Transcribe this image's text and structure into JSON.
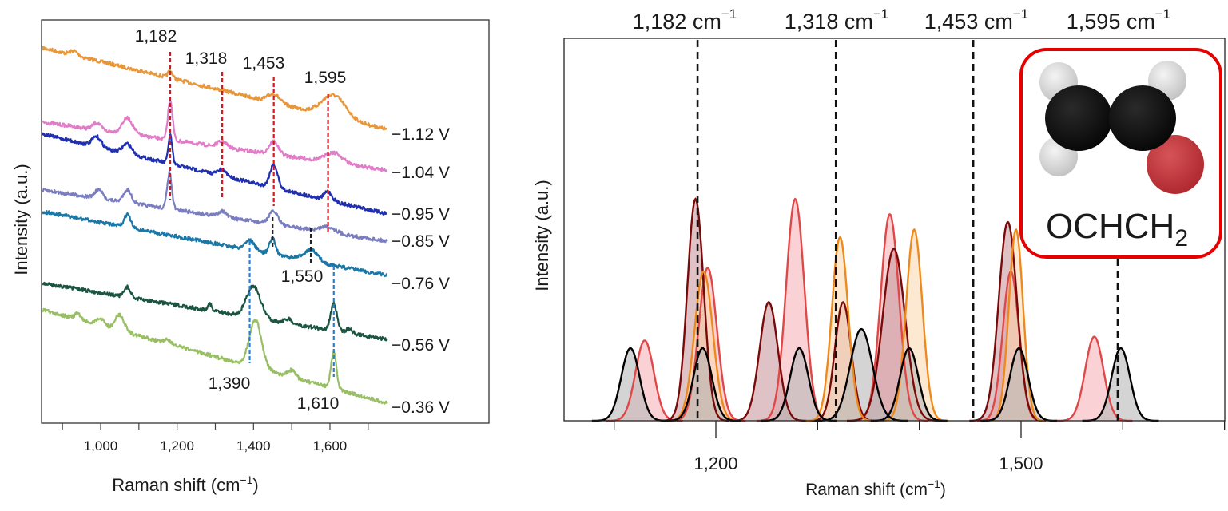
{
  "chart_data": [
    {
      "id": "left",
      "type": "line",
      "title": "",
      "xlabel": "Raman shift (cm⁻¹)",
      "ylabel": "Intensity (a.u.)",
      "xlim": [
        845,
        1760
      ],
      "x_ticks": [
        900,
        1000,
        1100,
        1200,
        1300,
        1400,
        1500,
        1600,
        1700
      ],
      "x_tick_labels": [
        {
          "value": 1000,
          "label": "1,000"
        },
        {
          "value": 1200,
          "label": "1,200"
        },
        {
          "value": 1400,
          "label": "1,400"
        },
        {
          "value": 1600,
          "label": "1,600"
        }
      ],
      "grid": false,
      "series": [
        {
          "name": "−1.12 V",
          "color": "#e8963a",
          "offset": 0.0,
          "slope": 1.0,
          "peaks": [
            [
              1182,
              0.25,
              6
            ],
            [
              1453,
              0.3,
              15
            ],
            [
              1610,
              0.75,
              30
            ],
            [
              930,
              0.15,
              10
            ]
          ]
        },
        {
          "name": "−1.04 V",
          "color": "#e07cc8",
          "offset": 1.0,
          "slope": 0.6,
          "peaks": [
            [
              1182,
              1.4,
              6
            ],
            [
              1070,
              0.55,
              14
            ],
            [
              990,
              0.25,
              10
            ],
            [
              1453,
              0.45,
              12
            ],
            [
              1610,
              0.35,
              22
            ],
            [
              1318,
              0.2,
              12
            ]
          ]
        },
        {
          "name": "−0.95 V",
          "color": "#1f2fb0",
          "offset": 1.15,
          "slope": 1.0,
          "peaks": [
            [
              1182,
              1.0,
              5
            ],
            [
              1070,
              0.35,
              12
            ],
            [
              990,
              0.35,
              12
            ],
            [
              1453,
              0.8,
              10
            ],
            [
              1595,
              0.3,
              10
            ],
            [
              1318,
              0.2,
              12
            ]
          ]
        },
        {
          "name": "−0.85 V",
          "color": "#7a7ec0",
          "offset": 1.85,
          "slope": 0.64,
          "peaks": [
            [
              1180,
              1.25,
              6
            ],
            [
              1070,
              0.45,
              10
            ],
            [
              995,
              0.3,
              10
            ],
            [
              1453,
              0.45,
              12
            ],
            [
              1318,
              0.2,
              10
            ],
            [
              1595,
              0.2,
              20
            ]
          ]
        },
        {
          "name": "−0.76 V",
          "color": "#1a78a8",
          "offset": 2.1,
          "slope": 0.8,
          "peaks": [
            [
              1070,
              0.45,
              8
            ],
            [
              1390,
              0.35,
              12
            ],
            [
              1450,
              0.55,
              8
            ],
            [
              1550,
              0.4,
              18
            ]
          ]
        },
        {
          "name": "−0.56 V",
          "color": "#1b5443",
          "offset": 3.0,
          "slope": 0.7,
          "peaks": [
            [
              1070,
              0.35,
              8
            ],
            [
              1285,
              0.25,
              5
            ],
            [
              1400,
              1.1,
              18
            ],
            [
              1610,
              0.95,
              8
            ],
            [
              1490,
              0.15,
              10
            ],
            [
              1650,
              0.15,
              8
            ]
          ]
        },
        {
          "name": "−0.36 V",
          "color": "#98bf63",
          "offset": 3.33,
          "slope": 1.17,
          "peaks": [
            [
              1050,
              0.55,
              12
            ],
            [
              1000,
              0.25,
              10
            ],
            [
              940,
              0.2,
              8
            ],
            [
              1175,
              0.15,
              10
            ],
            [
              1405,
              1.65,
              16
            ],
            [
              1610,
              1.3,
              7
            ],
            [
              1500,
              0.25,
              10
            ]
          ]
        }
      ],
      "annotations": [
        {
          "x": 1182,
          "label": "1,182",
          "style": "dashed",
          "color": "#c81d25"
        },
        {
          "x": 1318,
          "label": "1,318",
          "style": "dashed",
          "color": "#c81d25"
        },
        {
          "x": 1453,
          "label": "1,453",
          "style": "dashed",
          "color": "#c81d25"
        },
        {
          "x": 1595,
          "label": "1,595",
          "style": "dashed",
          "color": "#c81d25"
        },
        {
          "x": 1450,
          "label": "",
          "style": "dashed",
          "color": "#222222"
        },
        {
          "x": 1550,
          "label": "1,550",
          "style": "dashed",
          "color": "#222222"
        },
        {
          "x": 1390,
          "label": "1,390",
          "style": "dashed",
          "color": "#2a7fd0"
        },
        {
          "x": 1610,
          "label": "1,610",
          "style": "dashed",
          "color": "#2a7fd0"
        }
      ]
    },
    {
      "id": "right",
      "type": "area",
      "title": "",
      "xlabel": "Raman shift (cm⁻¹)",
      "ylabel": "Intensity (a.u.)",
      "xlim": [
        1050,
        1700
      ],
      "x_ticks": [
        1100,
        1200,
        1300,
        1400,
        1500,
        1600,
        1700
      ],
      "x_tick_labels": [
        {
          "value": 1200,
          "label": "1,200"
        },
        {
          "value": 1500,
          "label": "1,500"
        }
      ],
      "ylim": [
        0,
        1
      ],
      "grid": false,
      "reference_lines": [
        {
          "x": 1182,
          "label": "1,182 cm",
          "sup": "−1"
        },
        {
          "x": 1318,
          "label": "1,318 cm",
          "sup": "−1"
        },
        {
          "x": 1453,
          "label": "1,453 cm",
          "sup": "−1"
        },
        {
          "x": 1595,
          "label": "1,595 cm",
          "sup": "−1"
        }
      ],
      "series": [
        {
          "name": "light-red",
          "color": "#e04848",
          "fill": "#f7b3b8",
          "peaks": [
            [
              1130,
              0.21,
              9
            ],
            [
              1192,
              0.4,
              9
            ],
            [
              1278,
              0.58,
              9
            ],
            [
              1371,
              0.54,
              9
            ],
            [
              1490,
              0.39,
              8
            ],
            [
              1572,
              0.22,
              9
            ]
          ]
        },
        {
          "name": "dark-red",
          "color": "#7a0a0a",
          "fill": "#c99aa0",
          "peaks": [
            [
              1180,
              0.58,
              8
            ],
            [
              1252,
              0.31,
              9
            ],
            [
              1325,
              0.31,
              8
            ],
            [
              1375,
              0.45,
              11
            ],
            [
              1487,
              0.52,
              9
            ]
          ]
        },
        {
          "name": "orange",
          "color": "#ee8a1c",
          "fill": "#fbd9b3",
          "peaks": [
            [
              1188,
              0.39,
              9
            ],
            [
              1322,
              0.48,
              8
            ],
            [
              1395,
              0.5,
              8
            ],
            [
              1495,
              0.5,
              7
            ]
          ]
        },
        {
          "name": "black",
          "color": "#000000",
          "fill": "#b8b8b8",
          "peaks": [
            [
              1116,
              0.19,
              9
            ],
            [
              1187,
              0.19,
              9
            ],
            [
              1282,
              0.19,
              9
            ],
            [
              1343,
              0.24,
              11
            ],
            [
              1390,
              0.19,
              9
            ],
            [
              1498,
              0.19,
              9
            ],
            [
              1598,
              0.19,
              9
            ]
          ]
        }
      ],
      "inset": {
        "label": "OCHCH",
        "subscript": "2",
        "border_color": "#e60000",
        "atoms": [
          {
            "element": "C",
            "color": "#111111"
          },
          {
            "element": "C",
            "color": "#111111"
          },
          {
            "element": "O",
            "color": "#c8383c"
          },
          {
            "element": "H",
            "color": "#d8d8d8"
          },
          {
            "element": "H",
            "color": "#d8d8d8"
          },
          {
            "element": "H",
            "color": "#d8d8d8"
          }
        ]
      }
    }
  ]
}
